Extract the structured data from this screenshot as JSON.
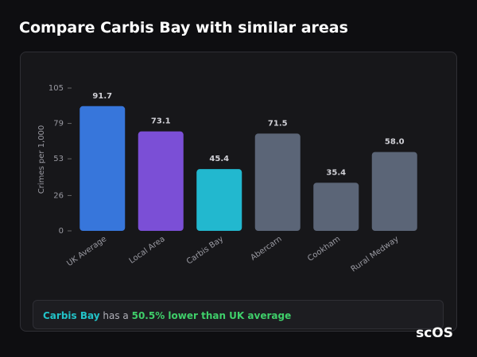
{
  "page_title": "Compare Carbis Bay with similar areas",
  "chart_data": {
    "type": "bar",
    "y_label": "Crimes per 1,000",
    "categories": [
      "UK Average",
      "Local Area",
      "Carbis Bay",
      "Abercarn",
      "Cookham",
      "Rural Medway"
    ],
    "values": [
      91.7,
      73.1,
      45.4,
      71.5,
      35.4,
      58
    ],
    "value_labels": [
      "91.7",
      "73.1",
      "45.4",
      "71.5",
      "35.4",
      "58.0"
    ],
    "colors": [
      "#3776db",
      "#7b4fd6",
      "#22b8cf",
      "#5b6577",
      "#5b6577",
      "#5b6577"
    ],
    "ylim": [
      0,
      105
    ],
    "yticks": [
      0,
      26,
      53,
      79,
      105
    ]
  },
  "summary": {
    "area": "Carbis Bay",
    "middle": "has a",
    "comparison": "50.5% lower than UK average"
  },
  "logo": "scOS"
}
